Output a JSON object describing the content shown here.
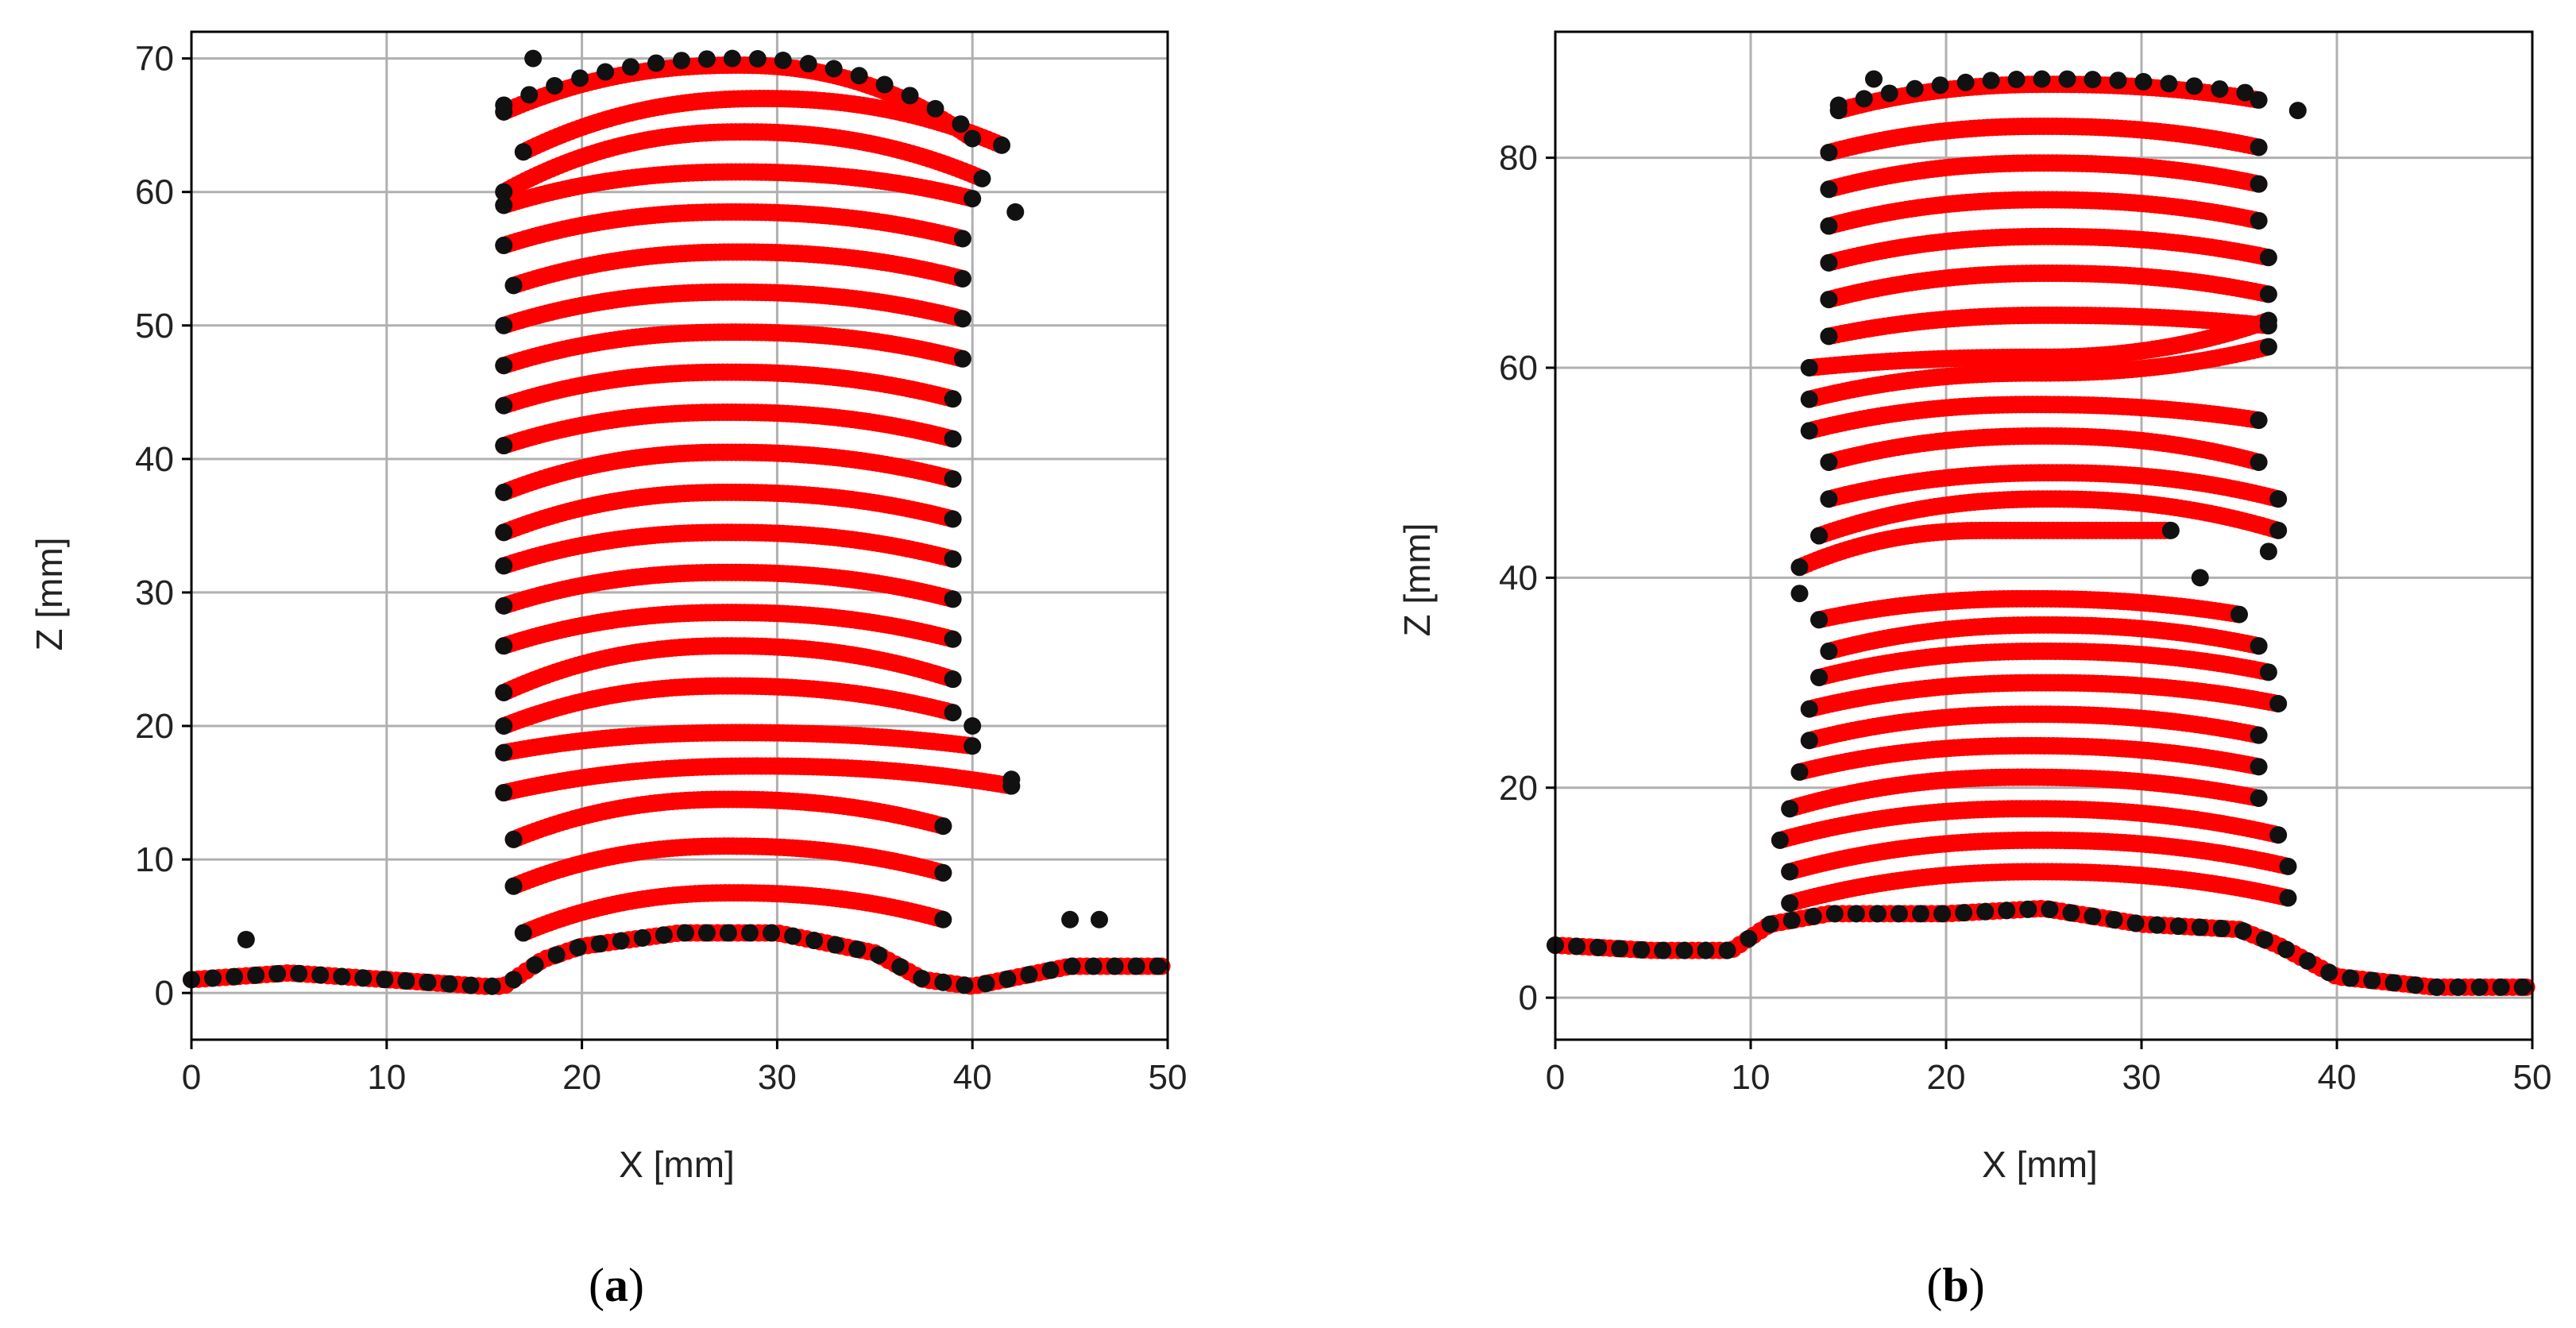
{
  "chart_data": [
    {
      "type": "scatter",
      "caption": "a",
      "xlabel": "X [mm]",
      "ylabel": "Z [mm]",
      "xlim": [
        0,
        50
      ],
      "ylim": [
        -3.5,
        72
      ],
      "xticks": [
        0,
        10,
        20,
        30,
        40,
        50
      ],
      "yticks": [
        0,
        10,
        20,
        30,
        40,
        50,
        60,
        70
      ],
      "grid": true,
      "colors": {
        "layers": "#ff0000",
        "edges": "#111111",
        "grid": "#b0b0b0"
      },
      "base_line": [
        [
          0,
          1
        ],
        [
          5,
          1.5
        ],
        [
          10,
          1
        ],
        [
          15,
          0.5
        ],
        [
          16,
          0.5
        ],
        [
          18,
          2.5
        ],
        [
          20,
          3.5
        ],
        [
          25,
          4.5
        ],
        [
          30,
          4.5
        ],
        [
          35,
          3
        ],
        [
          37.5,
          1
        ],
        [
          40,
          0.5
        ],
        [
          45,
          2
        ],
        [
          50,
          2
        ]
      ],
      "layers": [
        {
          "z_mid": 7.5,
          "z_left": 4.5,
          "z_right": 5.5,
          "x_start": 17,
          "x_end": 38.5
        },
        {
          "z_mid": 11,
          "z_left": 8,
          "z_right": 9,
          "x_start": 16.5,
          "x_end": 38.5
        },
        {
          "z_mid": 14.5,
          "z_left": 11.5,
          "z_right": 12.5,
          "x_start": 16.5,
          "x_end": 38.5
        },
        {
          "z_mid": 17,
          "z_left": 15,
          "z_right": 15.5,
          "x_start": 16,
          "x_end": 42
        },
        {
          "z_mid": 19.5,
          "z_left": 18,
          "z_right": 18.5,
          "x_start": 16,
          "x_end": 40
        },
        {
          "z_mid": 23,
          "z_left": 20,
          "z_right": 21,
          "x_start": 16,
          "x_end": 39
        },
        {
          "z_mid": 26,
          "z_left": 22.5,
          "z_right": 23.5,
          "x_start": 16,
          "x_end": 39
        },
        {
          "z_mid": 28.5,
          "z_left": 26,
          "z_right": 26.5,
          "x_start": 16,
          "x_end": 39
        },
        {
          "z_mid": 31.5,
          "z_left": 29,
          "z_right": 29.5,
          "x_start": 16,
          "x_end": 39
        },
        {
          "z_mid": 34.5,
          "z_left": 32,
          "z_right": 32.5,
          "x_start": 16,
          "x_end": 39
        },
        {
          "z_mid": 37.5,
          "z_left": 34.5,
          "z_right": 35.5,
          "x_start": 16,
          "x_end": 39
        },
        {
          "z_mid": 40.5,
          "z_left": 37.5,
          "z_right": 38.5,
          "x_start": 16,
          "x_end": 39
        },
        {
          "z_mid": 43.5,
          "z_left": 41,
          "z_right": 41.5,
          "x_start": 16,
          "x_end": 39
        },
        {
          "z_mid": 46.5,
          "z_left": 44,
          "z_right": 44.5,
          "x_start": 16,
          "x_end": 39
        },
        {
          "z_mid": 49.5,
          "z_left": 47,
          "z_right": 47.5,
          "x_start": 16,
          "x_end": 39.5
        },
        {
          "z_mid": 52.5,
          "z_left": 50,
          "z_right": 50.5,
          "x_start": 16,
          "x_end": 39.5
        },
        {
          "z_mid": 55.5,
          "z_left": 53,
          "z_right": 53.5,
          "x_start": 16.5,
          "x_end": 39.5
        },
        {
          "z_mid": 58.5,
          "z_left": 56,
          "z_right": 56.5,
          "x_start": 16,
          "x_end": 39.5
        },
        {
          "z_mid": 61.5,
          "z_left": 59,
          "z_right": 59.5,
          "x_start": 16,
          "x_end": 40
        },
        {
          "z_mid": 64.5,
          "z_left": 60,
          "z_right": 61,
          "x_start": 16,
          "x_end": 40.5
        },
        {
          "z_mid": 67,
          "z_left": 63,
          "z_right": 63.5,
          "x_start": 17,
          "x_end": 41.5
        },
        {
          "z_mid": 69.5,
          "z_left": 66,
          "z_right": 64,
          "x_start": 16,
          "x_end": 40
        }
      ],
      "outliers": [
        [
          2.8,
          4
        ],
        [
          17.5,
          70
        ],
        [
          45,
          5.5
        ],
        [
          46.5,
          5.5
        ],
        [
          40,
          20
        ],
        [
          42,
          16
        ],
        [
          42.2,
          58.5
        ]
      ]
    },
    {
      "type": "scatter",
      "caption": "b",
      "xlabel": "X [mm]",
      "ylabel": "Z [mm]",
      "xlim": [
        0,
        50
      ],
      "ylim": [
        -4,
        92
      ],
      "xticks": [
        0,
        10,
        20,
        30,
        40,
        50
      ],
      "yticks": [
        0,
        20,
        40,
        60,
        80
      ],
      "grid": true,
      "colors": {
        "layers": "#ff0000",
        "edges": "#111111",
        "grid": "#b0b0b0"
      },
      "base_line": [
        [
          0,
          5
        ],
        [
          5,
          4.5
        ],
        [
          9,
          4.5
        ],
        [
          11,
          7
        ],
        [
          14,
          8
        ],
        [
          20,
          8
        ],
        [
          25,
          8.5
        ],
        [
          30,
          7
        ],
        [
          35,
          6.5
        ],
        [
          37,
          5
        ],
        [
          40,
          2
        ],
        [
          45,
          1
        ],
        [
          50,
          1
        ]
      ],
      "layers": [
        {
          "z_mid": 12,
          "z_left": 9,
          "z_right": 9.5,
          "x_start": 12,
          "x_end": 37.5
        },
        {
          "z_mid": 15,
          "z_left": 12,
          "z_right": 12.5,
          "x_start": 12,
          "x_end": 37.5
        },
        {
          "z_mid": 18,
          "z_left": 15,
          "z_right": 15.5,
          "x_start": 11.5,
          "x_end": 37
        },
        {
          "z_mid": 21,
          "z_left": 18,
          "z_right": 19,
          "x_start": 12,
          "x_end": 36
        },
        {
          "z_mid": 24,
          "z_left": 21.5,
          "z_right": 22,
          "x_start": 12.5,
          "x_end": 36
        },
        {
          "z_mid": 27,
          "z_left": 24.5,
          "z_right": 25,
          "x_start": 13,
          "x_end": 36
        },
        {
          "z_mid": 30,
          "z_left": 27.5,
          "z_right": 28,
          "x_start": 13,
          "x_end": 37
        },
        {
          "z_mid": 33,
          "z_left": 30.5,
          "z_right": 31,
          "x_start": 13.5,
          "x_end": 36.5
        },
        {
          "z_mid": 35.5,
          "z_left": 33,
          "z_right": 33.5,
          "x_start": 14,
          "x_end": 36
        },
        {
          "z_mid": 38,
          "z_left": 36,
          "z_right": 36.5,
          "x_start": 13.5,
          "x_end": 35
        },
        {
          "z_mid": 44.5,
          "z_left": 41,
          "z_right": 44.5,
          "x_start": 12.5,
          "x_end": 31.5
        },
        {
          "z_mid": 47.5,
          "z_left": 44,
          "z_right": 44.5,
          "x_start": 13.5,
          "x_end": 37
        },
        {
          "z_mid": 50,
          "z_left": 47.5,
          "z_right": 47.5,
          "x_start": 14,
          "x_end": 37
        },
        {
          "z_mid": 53.5,
          "z_left": 51,
          "z_right": 51,
          "x_start": 14,
          "x_end": 36
        },
        {
          "z_mid": 56.5,
          "z_left": 54,
          "z_right": 55,
          "x_start": 13,
          "x_end": 36
        },
        {
          "z_mid": 59.5,
          "z_left": 57,
          "z_right": 62,
          "x_start": 13,
          "x_end": 36.5
        },
        {
          "z_mid": 61,
          "z_left": 60,
          "z_right": 64.5,
          "x_start": 13,
          "x_end": 36.5
        },
        {
          "z_mid": 65,
          "z_left": 63,
          "z_right": 64,
          "x_start": 14,
          "x_end": 36.5
        },
        {
          "z_mid": 69,
          "z_left": 66.5,
          "z_right": 67,
          "x_start": 14,
          "x_end": 36.5
        },
        {
          "z_mid": 72.5,
          "z_left": 70,
          "z_right": 70.5,
          "x_start": 14,
          "x_end": 36.5
        },
        {
          "z_mid": 76,
          "z_left": 73.5,
          "z_right": 74,
          "x_start": 14,
          "x_end": 36
        },
        {
          "z_mid": 79.5,
          "z_left": 77,
          "z_right": 77.5,
          "x_start": 14,
          "x_end": 36
        },
        {
          "z_mid": 83,
          "z_left": 80.5,
          "z_right": 81,
          "x_start": 14,
          "x_end": 36
        },
        {
          "z_mid": 87,
          "z_left": 84.5,
          "z_right": 85.5,
          "x_start": 14.5,
          "x_end": 36
        }
      ],
      "outliers": [
        [
          16.3,
          87.5
        ],
        [
          38,
          84.5
        ],
        [
          12.5,
          38.5
        ],
        [
          36.5,
          42.5
        ],
        [
          33,
          40
        ]
      ]
    }
  ]
}
